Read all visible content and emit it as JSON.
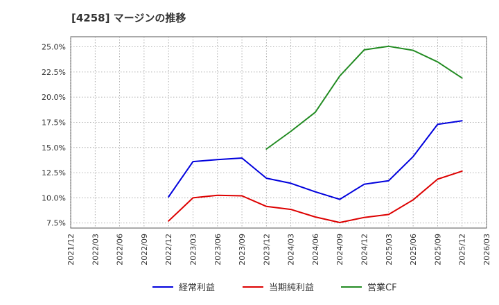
{
  "chart_data": {
    "type": "line",
    "title": "[4258]  マージンの推移",
    "xlabel": "",
    "ylabel": "",
    "ylim": [
      7.0,
      26.0
    ],
    "xlim": [
      "2021/12",
      "2026/03"
    ],
    "y_ticks": [
      7.5,
      10.0,
      12.5,
      15.0,
      17.5,
      20.0,
      22.5,
      25.0
    ],
    "y_tick_labels": [
      "7.5%",
      "10.0%",
      "12.5%",
      "15.0%",
      "17.5%",
      "20.0%",
      "22.5%",
      "25.0%"
    ],
    "x_ticks": [
      "2021/12",
      "2022/03",
      "2022/06",
      "2022/09",
      "2022/12",
      "2023/03",
      "2023/06",
      "2023/09",
      "2023/12",
      "2024/03",
      "2024/06",
      "2024/09",
      "2024/12",
      "2025/03",
      "2025/06",
      "2025/09",
      "2025/12",
      "2026/03"
    ],
    "grid": true,
    "legend_position": "bottom",
    "series": [
      {
        "name": "経常利益",
        "color": "#0000dd",
        "x": [
          "2022/12",
          "2023/03",
          "2023/06",
          "2023/09",
          "2023/12",
          "2024/03",
          "2024/06",
          "2024/09",
          "2024/12",
          "2025/03",
          "2025/06",
          "2025/09",
          "2025/12"
        ],
        "values": [
          10.1,
          13.6,
          13.8,
          13.95,
          11.95,
          11.45,
          10.6,
          9.85,
          11.35,
          11.7,
          14.1,
          17.3,
          17.65
        ]
      },
      {
        "name": "当期純利益",
        "color": "#dd0000",
        "x": [
          "2022/12",
          "2023/03",
          "2023/06",
          "2023/09",
          "2023/12",
          "2024/03",
          "2024/06",
          "2024/09",
          "2024/12",
          "2025/03",
          "2025/06",
          "2025/09",
          "2025/12"
        ],
        "values": [
          7.7,
          10.0,
          10.25,
          10.2,
          9.15,
          8.85,
          8.1,
          7.55,
          8.05,
          8.35,
          9.8,
          11.85,
          12.65
        ]
      },
      {
        "name": "営業CF",
        "color": "#228b22",
        "x": [
          "2023/12",
          "2024/03",
          "2024/06",
          "2024/09",
          "2024/12",
          "2025/03",
          "2025/06",
          "2025/09",
          "2025/12"
        ],
        "values": [
          14.85,
          16.6,
          18.5,
          22.1,
          24.7,
          25.05,
          24.65,
          23.5,
          21.9
        ]
      }
    ]
  }
}
